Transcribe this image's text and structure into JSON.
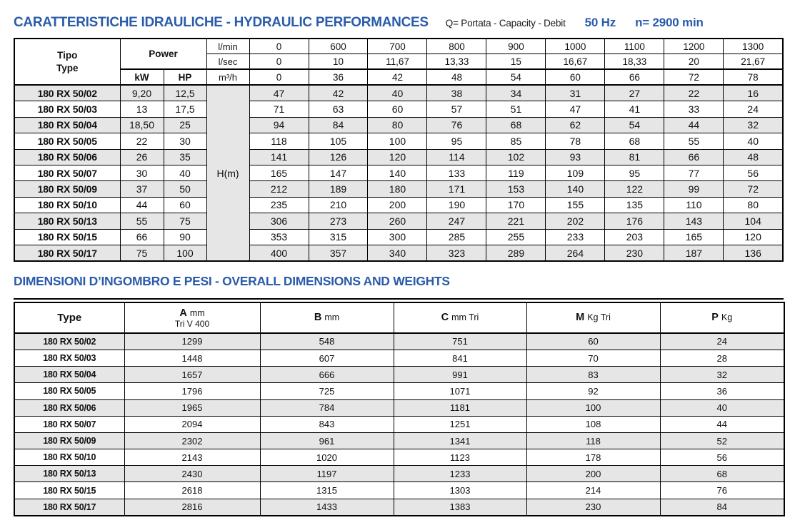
{
  "colors": {
    "accent_blue": "#2a5caa",
    "row_shade": "#e6e6e6",
    "border": "#000000"
  },
  "header": {
    "title": "CARATTERISTICHE IDRAULICHE - HYDRAULIC PERFORMANCES",
    "subtitle": "Q= Portata - Capacity - Debit",
    "frequency": "50 Hz",
    "speed": "n= 2900 min"
  },
  "hydraulic_table": {
    "tipo_label": "Tipo",
    "type_label": "Type",
    "power_label": "Power",
    "kw_label": "kW",
    "hp_label": "HP",
    "head_label": "H(m)",
    "flow_rows": [
      {
        "unit": "l/min",
        "values": [
          "0",
          "600",
          "700",
          "800",
          "900",
          "1000",
          "1100",
          "1200",
          "1300"
        ]
      },
      {
        "unit": "l/sec",
        "values": [
          "0",
          "10",
          "11,67",
          "13,33",
          "15",
          "16,67",
          "18,33",
          "20",
          "21,67"
        ]
      },
      {
        "unit": "m³/h",
        "values": [
          "0",
          "36",
          "42",
          "48",
          "54",
          "60",
          "66",
          "72",
          "78"
        ]
      }
    ],
    "rows": [
      {
        "type": "180 RX 50/02",
        "kw": "9,20",
        "hp": "12,5",
        "heads": [
          "47",
          "42",
          "40",
          "38",
          "34",
          "31",
          "27",
          "22",
          "16"
        ]
      },
      {
        "type": "180 RX 50/03",
        "kw": "13",
        "hp": "17,5",
        "heads": [
          "71",
          "63",
          "60",
          "57",
          "51",
          "47",
          "41",
          "33",
          "24"
        ]
      },
      {
        "type": "180 RX 50/04",
        "kw": "18,50",
        "hp": "25",
        "heads": [
          "94",
          "84",
          "80",
          "76",
          "68",
          "62",
          "54",
          "44",
          "32"
        ]
      },
      {
        "type": "180 RX 50/05",
        "kw": "22",
        "hp": "30",
        "heads": [
          "118",
          "105",
          "100",
          "95",
          "85",
          "78",
          "68",
          "55",
          "40"
        ]
      },
      {
        "type": "180 RX 50/06",
        "kw": "26",
        "hp": "35",
        "heads": [
          "141",
          "126",
          "120",
          "114",
          "102",
          "93",
          "81",
          "66",
          "48"
        ]
      },
      {
        "type": "180 RX 50/07",
        "kw": "30",
        "hp": "40",
        "heads": [
          "165",
          "147",
          "140",
          "133",
          "119",
          "109",
          "95",
          "77",
          "56"
        ]
      },
      {
        "type": "180 RX 50/09",
        "kw": "37",
        "hp": "50",
        "heads": [
          "212",
          "189",
          "180",
          "171",
          "153",
          "140",
          "122",
          "99",
          "72"
        ]
      },
      {
        "type": "180 RX 50/10",
        "kw": "44",
        "hp": "60",
        "heads": [
          "235",
          "210",
          "200",
          "190",
          "170",
          "155",
          "135",
          "110",
          "80"
        ]
      },
      {
        "type": "180 RX 50/13",
        "kw": "55",
        "hp": "75",
        "heads": [
          "306",
          "273",
          "260",
          "247",
          "221",
          "202",
          "176",
          "143",
          "104"
        ]
      },
      {
        "type": "180 RX 50/15",
        "kw": "66",
        "hp": "90",
        "heads": [
          "353",
          "315",
          "300",
          "285",
          "255",
          "233",
          "203",
          "165",
          "120"
        ]
      },
      {
        "type": "180 RX 50/17",
        "kw": "75",
        "hp": "100",
        "heads": [
          "400",
          "357",
          "340",
          "323",
          "289",
          "264",
          "230",
          "187",
          "136"
        ]
      }
    ]
  },
  "dimensions": {
    "title": "DIMENSIONI D’INGOMBRO E PESI - OVERALL DIMENSIONS AND WEIGHTS",
    "type_label": "Type",
    "columns": [
      {
        "letter": "A",
        "unit": "mm",
        "sub": "Tri V 400"
      },
      {
        "letter": "B",
        "unit": "mm",
        "sub": ""
      },
      {
        "letter": "C",
        "unit": "mm Tri",
        "sub": ""
      },
      {
        "letter": "M",
        "unit": "Kg Tri",
        "sub": ""
      },
      {
        "letter": "P",
        "unit": "Kg",
        "sub": ""
      }
    ],
    "rows": [
      {
        "type": "180 RX 50/02",
        "values": [
          "1299",
          "548",
          "751",
          "60",
          "24"
        ]
      },
      {
        "type": "180 RX 50/03",
        "values": [
          "1448",
          "607",
          "841",
          "70",
          "28"
        ]
      },
      {
        "type": "180 RX 50/04",
        "values": [
          "1657",
          "666",
          "991",
          "83",
          "32"
        ]
      },
      {
        "type": "180 RX 50/05",
        "values": [
          "1796",
          "725",
          "1071",
          "92",
          "36"
        ]
      },
      {
        "type": "180 RX 50/06",
        "values": [
          "1965",
          "784",
          "1181",
          "100",
          "40"
        ]
      },
      {
        "type": "180 RX 50/07",
        "values": [
          "2094",
          "843",
          "1251",
          "108",
          "44"
        ]
      },
      {
        "type": "180 RX 50/09",
        "values": [
          "2302",
          "961",
          "1341",
          "118",
          "52"
        ]
      },
      {
        "type": "180 RX 50/10",
        "values": [
          "2143",
          "1020",
          "1123",
          "178",
          "56"
        ]
      },
      {
        "type": "180 RX 50/13",
        "values": [
          "2430",
          "1197",
          "1233",
          "200",
          "68"
        ]
      },
      {
        "type": "180 RX 50/15",
        "values": [
          "2618",
          "1315",
          "1303",
          "214",
          "76"
        ]
      },
      {
        "type": "180 RX 50/17",
        "values": [
          "2816",
          "1433",
          "1383",
          "230",
          "84"
        ]
      }
    ]
  }
}
